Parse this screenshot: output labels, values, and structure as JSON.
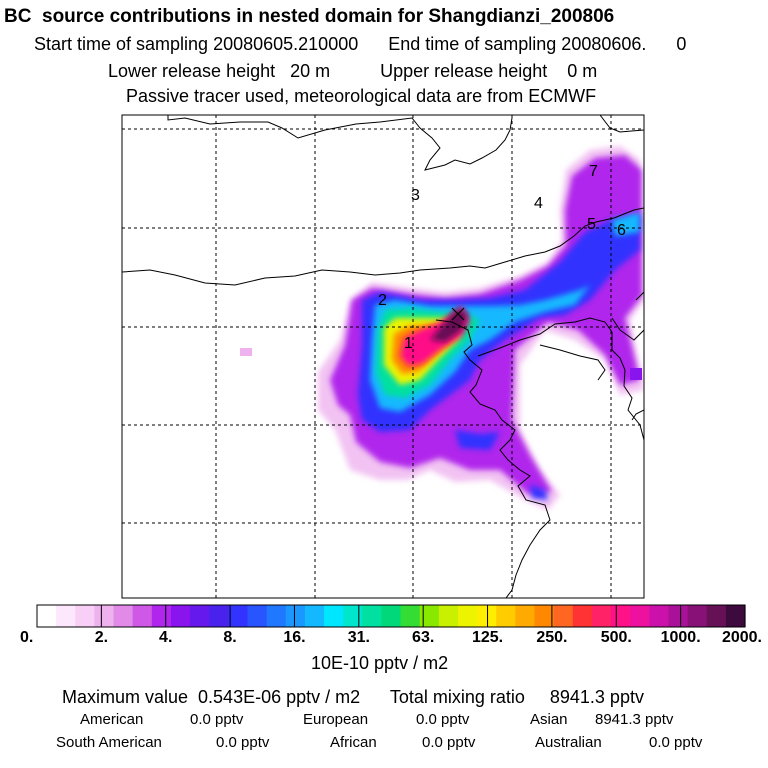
{
  "header": {
    "title": "BC  source contributions in nested domain for Shangdianzi_200806",
    "sampling_line": "Start time of sampling 20080605.210000      End time of sampling 20080606.      0",
    "release_line": "Lower release height   20 m          Upper release height    0 m",
    "tracer_line": "Passive tracer used, meteorological data are from ECMWF"
  },
  "map": {
    "region_labels": [
      "1",
      "2",
      "3",
      "4",
      "5",
      "6",
      "7"
    ],
    "colors": {
      "land_outline": "#000000",
      "grid": "#000000",
      "peak": "#3c0a3c"
    }
  },
  "colorbar": {
    "tick_labels": [
      "0.",
      "2.",
      "4.",
      "8.",
      "16.",
      "31.",
      "63.",
      "125.",
      "250.",
      "500.",
      "1000.",
      "2000."
    ],
    "unit_label": "10E-10 pptv / m2",
    "colors": [
      "#ffffff",
      "#fde7fd",
      "#f7cff7",
      "#eeb2ee",
      "#e28ae7",
      "#cf59e6",
      "#b026ec",
      "#8a14ee",
      "#6619ec",
      "#4a22ee",
      "#3333ff",
      "#2955ff",
      "#1f78ff",
      "#1a98ff",
      "#14b8ff",
      "#00e6ff",
      "#00e6cc",
      "#00e0a0",
      "#00d87a",
      "#33dd33",
      "#88e800",
      "#c8f000",
      "#eef400",
      "#ffee00",
      "#ffcc00",
      "#ffaa00",
      "#ff8800",
      "#ff6622",
      "#ff3333",
      "#ff2266",
      "#ff1188",
      "#ee11a0",
      "#cc11aa",
      "#aa1199",
      "#881177",
      "#661155",
      "#3c0a3c"
    ]
  },
  "summary": {
    "max_line": "Maximum value  0.543E-06 pptv / m2      Total mixing ratio     8941.3 pptv",
    "rows": [
      [
        {
          "label": "American",
          "value": "0.0 pptv"
        },
        {
          "label": "European",
          "value": "0.0 pptv"
        },
        {
          "label": "Asian",
          "value": "8941.3 pptv"
        }
      ],
      [
        {
          "label": "South American",
          "value": "0.0 pptv"
        },
        {
          "label": "African",
          "value": "0.0 pptv"
        },
        {
          "label": "Australian",
          "value": "0.0 pptv"
        }
      ]
    ]
  }
}
